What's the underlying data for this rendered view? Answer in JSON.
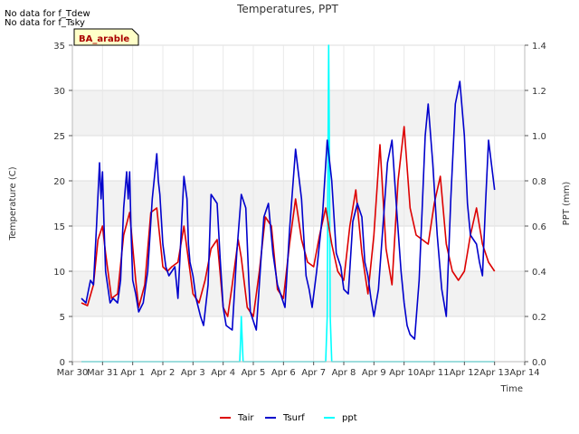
{
  "chart_data": {
    "type": "line",
    "title": "Temperatures, PPT",
    "xlabel": "Time",
    "ylabel": "Temperature (C)",
    "y2label": "PPT (mm)",
    "ylim": [
      0,
      35
    ],
    "y2lim": [
      0,
      1.4
    ],
    "yticks": [
      0,
      5,
      10,
      15,
      20,
      25,
      30,
      35
    ],
    "y2ticks": [
      0.0,
      0.2,
      0.4,
      0.6,
      0.8,
      1.0,
      1.2,
      1.4
    ],
    "xlim": [
      0,
      15
    ],
    "xticks": [
      0,
      1,
      2,
      3,
      4,
      5,
      6,
      7,
      8,
      9,
      10,
      11,
      12,
      13,
      14,
      15
    ],
    "xticklabels": [
      "Mar 30",
      "Mar 31",
      "Apr 1",
      "Apr 2",
      "Apr 3",
      "Apr 4",
      "Apr 5",
      "Apr 6",
      "Apr 7",
      "Apr 8",
      "Apr 9",
      "Apr 10",
      "Apr 11",
      "Apr 12",
      "Apr 13",
      "Apr 14"
    ],
    "notes": [
      "No data for f_Tdew",
      "No data for f_Tsky"
    ],
    "badge": "BA_arable",
    "legend": [
      {
        "name": "Tair",
        "color": "#dd0000"
      },
      {
        "name": "Tsurf",
        "color": "#0000cc"
      },
      {
        "name": "ppt",
        "color": "#00ffff"
      }
    ],
    "series": [
      {
        "name": "Tair",
        "color": "#dd0000",
        "axis": "left",
        "x": [
          0.3,
          0.5,
          0.7,
          0.85,
          1.0,
          1.1,
          1.3,
          1.5,
          1.7,
          1.9,
          2.1,
          2.2,
          2.4,
          2.6,
          2.8,
          3.0,
          3.15,
          3.3,
          3.5,
          3.7,
          3.9,
          4.0,
          4.2,
          4.4,
          4.6,
          4.8,
          5.0,
          5.15,
          5.3,
          5.5,
          5.6,
          5.8,
          6.0,
          6.2,
          6.4,
          6.6,
          6.8,
          7.0,
          7.2,
          7.4,
          7.6,
          7.8,
          8.0,
          8.2,
          8.4,
          8.6,
          8.8,
          9.0,
          9.2,
          9.4,
          9.6,
          9.8,
          10.0,
          10.2,
          10.4,
          10.6,
          10.8,
          11.0,
          11.2,
          11.4,
          11.6,
          11.8,
          12.0,
          12.2,
          12.4,
          12.6,
          12.8,
          13.0,
          13.2,
          13.4,
          13.6,
          13.8,
          14.0
        ],
        "values": [
          6.5,
          6.2,
          8.5,
          13.5,
          15.0,
          12.0,
          7.0,
          7.5,
          14.0,
          16.5,
          9.0,
          6.0,
          8.5,
          16.5,
          17.0,
          10.5,
          10.0,
          10.5,
          11.0,
          15.0,
          10.0,
          7.5,
          6.5,
          9.0,
          12.5,
          13.5,
          6.0,
          5.0,
          8.5,
          13.5,
          11.5,
          6.0,
          5.0,
          10.0,
          16.0,
          15.0,
          8.0,
          7.0,
          13.0,
          18.0,
          13.5,
          11.0,
          10.5,
          14.0,
          17.0,
          13.0,
          10.0,
          9.0,
          15.0,
          19.0,
          12.0,
          7.5,
          14.0,
          24.0,
          12.5,
          8.5,
          20.0,
          26.0,
          17.0,
          14.0,
          13.5,
          13.0,
          17.5,
          20.5,
          13.0,
          10.0,
          9.0,
          10.0,
          14.0,
          17.0,
          13.0,
          11.0,
          10.0
        ]
      },
      {
        "name": "Tsurf",
        "color": "#0000cc",
        "axis": "left",
        "x": [
          0.3,
          0.45,
          0.6,
          0.7,
          0.8,
          0.9,
          0.95,
          1.0,
          1.05,
          1.1,
          1.25,
          1.35,
          1.5,
          1.6,
          1.7,
          1.8,
          1.85,
          1.9,
          1.95,
          2.0,
          2.1,
          2.2,
          2.35,
          2.5,
          2.65,
          2.8,
          2.85,
          2.9,
          3.0,
          3.1,
          3.2,
          3.3,
          3.4,
          3.5,
          3.7,
          3.8,
          3.85,
          3.9,
          4.0,
          4.1,
          4.25,
          4.35,
          4.5,
          4.6,
          4.8,
          4.9,
          5.0,
          5.1,
          5.3,
          5.45,
          5.6,
          5.75,
          5.85,
          5.9,
          6.0,
          6.1,
          6.25,
          6.35,
          6.5,
          6.65,
          6.8,
          6.95,
          7.05,
          7.2,
          7.4,
          7.6,
          7.75,
          7.85,
          7.95,
          8.1,
          8.3,
          8.45,
          8.6,
          8.75,
          8.9,
          9.0,
          9.15,
          9.3,
          9.45,
          9.6,
          9.7,
          9.8,
          9.9,
          10.0,
          10.15,
          10.3,
          10.45,
          10.6,
          10.75,
          10.9,
          11.0,
          11.1,
          11.2,
          11.35,
          11.5,
          11.6,
          11.7,
          11.8,
          11.95,
          12.1,
          12.25,
          12.4,
          12.55,
          12.7,
          12.85,
          13.0,
          13.1,
          13.2,
          13.3,
          13.4,
          13.5,
          13.6,
          13.7,
          13.8,
          14.0
        ],
        "values": [
          7.0,
          6.5,
          9.0,
          8.5,
          15.0,
          22.0,
          18.0,
          21.0,
          15.0,
          10.0,
          6.5,
          7.0,
          6.5,
          9.0,
          17.0,
          21.0,
          18.0,
          21.0,
          14.0,
          9.0,
          7.5,
          5.5,
          6.5,
          10.0,
          18.0,
          23.0,
          20.0,
          18.5,
          13.0,
          10.5,
          9.5,
          10.0,
          10.5,
          7.0,
          20.5,
          18.0,
          13.0,
          11.0,
          9.5,
          7.0,
          5.0,
          4.0,
          8.5,
          18.5,
          17.5,
          11.5,
          6.0,
          4.0,
          3.5,
          12.0,
          18.5,
          17.0,
          9.0,
          5.5,
          4.5,
          3.5,
          11.0,
          16.0,
          17.5,
          12.0,
          8.5,
          7.0,
          6.0,
          14.5,
          23.5,
          18.0,
          9.5,
          8.0,
          6.0,
          10.0,
          16.5,
          24.5,
          20.0,
          12.0,
          10.5,
          8.0,
          7.5,
          15.5,
          17.5,
          16.0,
          11.0,
          9.5,
          7.0,
          5.0,
          8.0,
          15.0,
          22.0,
          24.5,
          17.0,
          10.0,
          6.5,
          4.0,
          3.0,
          2.5,
          9.0,
          17.0,
          25.0,
          28.5,
          22.0,
          14.0,
          8.0,
          5.0,
          18.0,
          28.5,
          31.0,
          25.0,
          17.5,
          14.0,
          13.5,
          13.0,
          11.0,
          9.5,
          17.5,
          24.5,
          19.0
        ]
      },
      {
        "name": "ppt",
        "color": "#00ffff",
        "axis": "right",
        "x": [
          0.3,
          5.55,
          5.58,
          5.6,
          5.63,
          5.66,
          8.4,
          8.45,
          8.48,
          8.5,
          8.52,
          8.55,
          8.6,
          14.0
        ],
        "values": [
          0.0,
          0.0,
          0.1,
          0.2,
          0.1,
          0.0,
          0.0,
          0.2,
          1.0,
          1.4,
          1.0,
          0.2,
          0.0,
          0.0
        ]
      }
    ]
  }
}
